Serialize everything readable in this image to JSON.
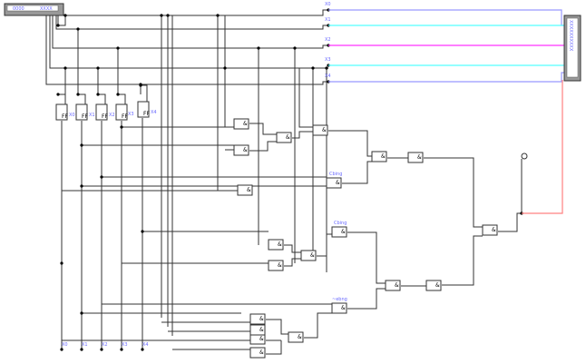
{
  "input_component": {
    "left_text": "0000",
    "right_text": "XXXX"
  },
  "output_component": {
    "text": "XXXXXXXXXX"
  },
  "bus_labels": [
    "X0",
    "X1",
    "X2",
    "X3",
    "X4"
  ],
  "flipflop_labels": [
    "X0",
    "X1",
    "X2",
    "X3",
    "X4"
  ],
  "bottom_labels": [
    "X0",
    "X1",
    "X2",
    "X3",
    "X4"
  ],
  "gate_labels": [
    "Cbing",
    "Cbing",
    "~ebng"
  ],
  "gate_symbol": "&",
  "colors": {
    "bus0": "#9999ff",
    "bus1": "#55ffff",
    "bus2": "#ff33ff",
    "bus3": "#55ffff",
    "bus4": "#9999ff",
    "output": "#ff8080",
    "wire": "#333333",
    "label": "#6a6aff"
  }
}
